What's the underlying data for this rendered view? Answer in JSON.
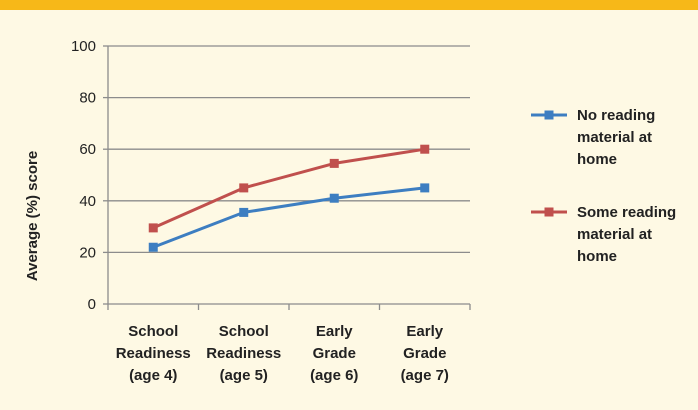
{
  "colors": {
    "banner": "#F7B818",
    "background": "#FEF9E4",
    "series_blue": "#3D7EC1",
    "series_red": "#C0504D",
    "grid": "#8C8C8C"
  },
  "chart_data": {
    "type": "line",
    "ylabel": "Average (%) score",
    "xlabel": "",
    "ylim": [
      0,
      100
    ],
    "yticks": [
      0,
      20,
      40,
      60,
      80,
      100
    ],
    "grid": true,
    "legend_position": "right",
    "categories": [
      [
        "School",
        "Readiness",
        "(age 4)"
      ],
      [
        "School",
        "Readiness",
        "(age 5)"
      ],
      [
        "Early",
        "Grade",
        "(age 6)"
      ],
      [
        "Early",
        "Grade",
        "(age 7)"
      ]
    ],
    "series": [
      {
        "name": [
          "No reading",
          "material at",
          "home"
        ],
        "color": "#3D7EC1",
        "values": [
          22,
          35.5,
          41,
          45
        ]
      },
      {
        "name": [
          "Some reading",
          "material at",
          "home"
        ],
        "color": "#C0504D",
        "values": [
          29.5,
          45,
          54.5,
          60
        ]
      }
    ]
  }
}
